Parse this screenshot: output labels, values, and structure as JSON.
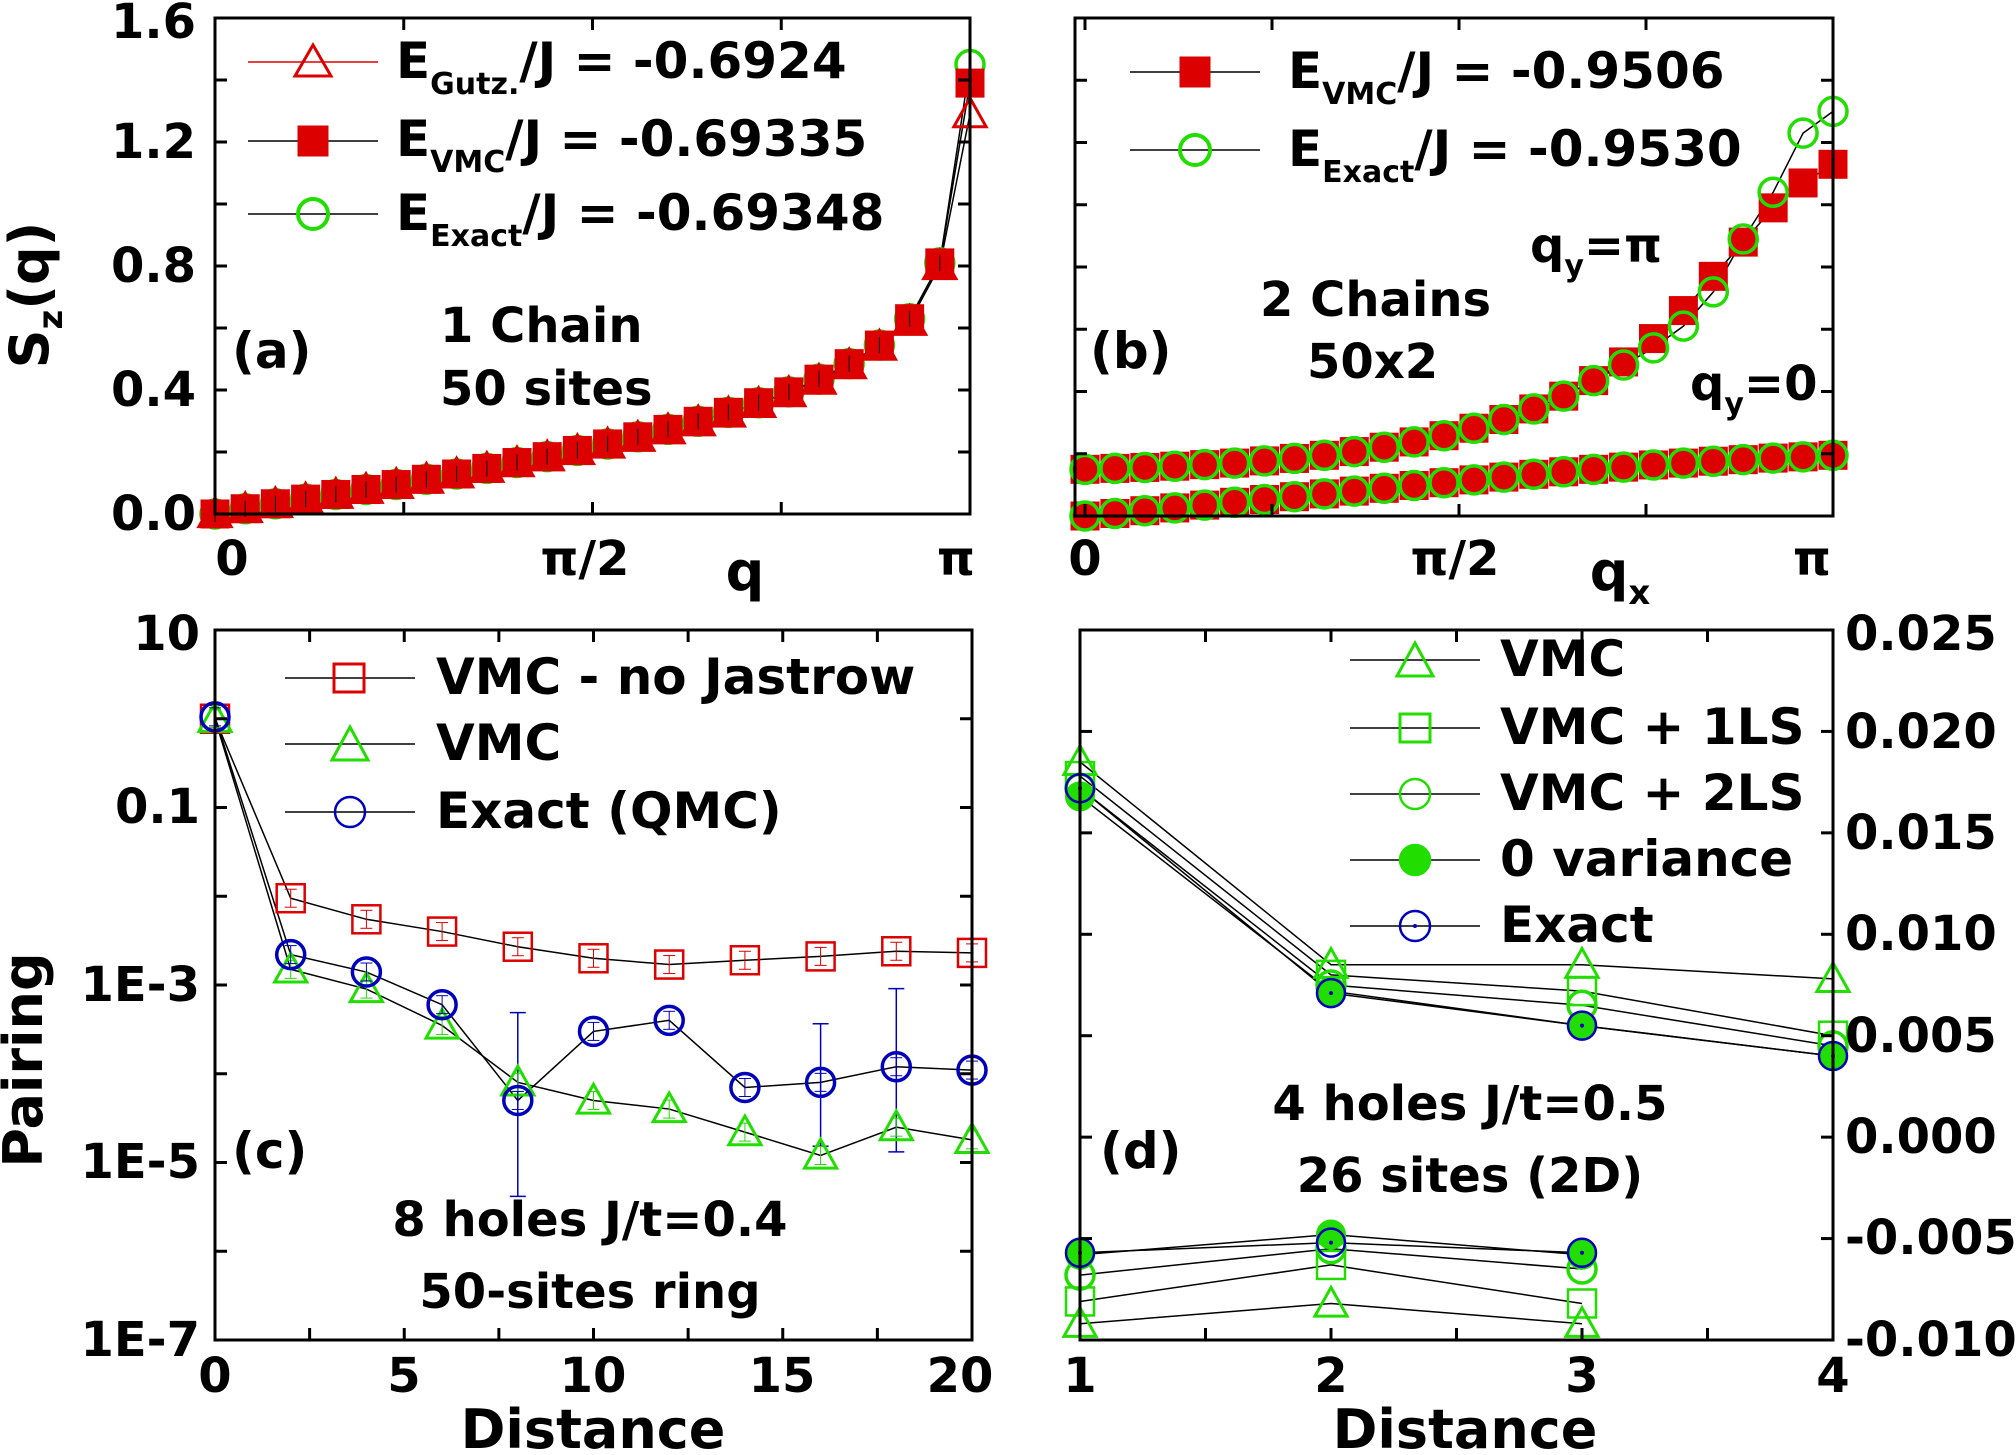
{
  "colors": {
    "red": "#dd0000",
    "green": "#22dd00",
    "blue": "#0000bb",
    "black": "#000000"
  },
  "chart_data": [
    {
      "id": "a",
      "type": "scatter",
      "panel_label": "(a)",
      "ylabel": "S_z(q)",
      "xlabel": "q",
      "xlim": [
        0,
        3.14159
      ],
      "ylim": [
        0,
        1.6
      ],
      "yticks": [
        "0.0",
        "0.4",
        "0.8",
        "1.2",
        "1.6"
      ],
      "xticks": [
        "0",
        "π/2",
        "π"
      ],
      "annotations": [
        "1 Chain",
        "50 sites"
      ],
      "legend": [
        "E_Gutz./J = -0.6924",
        "E_VMC/J  = -0.69335",
        "E_Exact/J = -0.69348"
      ],
      "series": [
        {
          "name": "E_Gutz./J = -0.6924",
          "marker": "open-triangle",
          "color": "red",
          "y": [
            0.0,
            0.016,
            0.032,
            0.047,
            0.062,
            0.078,
            0.094,
            0.111,
            0.128,
            0.146,
            0.164,
            0.183,
            0.203,
            0.224,
            0.246,
            0.27,
            0.296,
            0.324,
            0.355,
            0.39,
            0.43,
            0.48,
            0.54,
            0.62,
            0.8,
            1.29
          ]
        },
        {
          "name": "E_VMC/J  = -0.69335",
          "marker": "filled-square",
          "color": "red",
          "y": [
            0.0,
            0.017,
            0.033,
            0.048,
            0.063,
            0.079,
            0.095,
            0.112,
            0.129,
            0.147,
            0.166,
            0.185,
            0.205,
            0.226,
            0.249,
            0.273,
            0.299,
            0.328,
            0.359,
            0.394,
            0.435,
            0.485,
            0.545,
            0.63,
            0.81,
            1.39
          ]
        },
        {
          "name": "E_Exact/J = -0.69348",
          "marker": "open-circle",
          "color": "green",
          "y": [
            0.0,
            0.017,
            0.033,
            0.048,
            0.063,
            0.079,
            0.095,
            0.112,
            0.129,
            0.147,
            0.166,
            0.185,
            0.205,
            0.226,
            0.249,
            0.273,
            0.299,
            0.328,
            0.359,
            0.394,
            0.435,
            0.485,
            0.545,
            0.63,
            0.81,
            1.45
          ]
        }
      ]
    },
    {
      "id": "b",
      "type": "scatter",
      "panel_label": "(b)",
      "xlabel": "q_x",
      "xlim": [
        0,
        3.14159
      ],
      "ylim": [
        0,
        1.6
      ],
      "xticks": [
        "0",
        "π/2",
        "π"
      ],
      "annotations": [
        "2 Chains",
        "50x2",
        "q_y=π",
        "q_y=0"
      ],
      "legend": [
        "E_VMC/J = -0.9506",
        "E_Exact/J = -0.9530"
      ],
      "series": [
        {
          "name": "E_VMC/J = -0.9506 (q_y=π)",
          "marker": "filled-square",
          "color": "red",
          "y": [
            0.15,
            0.153,
            0.156,
            0.16,
            0.165,
            0.17,
            0.177,
            0.185,
            0.195,
            0.207,
            0.221,
            0.238,
            0.258,
            0.282,
            0.31,
            0.344,
            0.385,
            0.435,
            0.495,
            0.57,
            0.66,
            0.77,
            0.88,
            0.99,
            1.07,
            1.13
          ]
        },
        {
          "name": "E_Exact/J = -0.9530 (q_y=π)",
          "marker": "open-circle",
          "color": "green",
          "y": [
            0.15,
            0.153,
            0.156,
            0.16,
            0.165,
            0.17,
            0.177,
            0.185,
            0.195,
            0.207,
            0.221,
            0.238,
            0.258,
            0.282,
            0.31,
            0.344,
            0.385,
            0.435,
            0.485,
            0.54,
            0.61,
            0.72,
            0.89,
            1.04,
            1.23,
            1.3
          ]
        },
        {
          "name": "E_VMC/J = -0.9506 (q_y=0)",
          "marker": "filled-square",
          "color": "red",
          "y": [
            0.0,
            0.008,
            0.017,
            0.026,
            0.035,
            0.044,
            0.053,
            0.062,
            0.071,
            0.08,
            0.089,
            0.098,
            0.107,
            0.116,
            0.125,
            0.134,
            0.142,
            0.15,
            0.157,
            0.164,
            0.17,
            0.176,
            0.181,
            0.186,
            0.19,
            0.195
          ]
        },
        {
          "name": "E_Exact/J = -0.9530 (q_y=0)",
          "marker": "open-circle",
          "color": "green",
          "y": [
            0.0,
            0.008,
            0.017,
            0.026,
            0.035,
            0.044,
            0.053,
            0.062,
            0.071,
            0.08,
            0.089,
            0.098,
            0.107,
            0.116,
            0.125,
            0.134,
            0.142,
            0.15,
            0.157,
            0.164,
            0.17,
            0.176,
            0.181,
            0.186,
            0.19,
            0.195
          ]
        }
      ]
    },
    {
      "id": "c",
      "type": "scatter",
      "panel_label": "(c)",
      "ylabel": "Pairing",
      "xlabel": "Distance",
      "xlim": [
        0,
        20
      ],
      "ylim_log10": [
        -7,
        1
      ],
      "yscale": "log",
      "xticks": [
        "0",
        "5",
        "10",
        "15",
        "20"
      ],
      "yticks": [
        "1E-7",
        "1E-5",
        "1E-3",
        "0.1",
        "10"
      ],
      "annotations": [
        "8 holes J/t=0.4",
        "50-sites ring"
      ],
      "legend": [
        "VMC - no Jastrow",
        "VMC",
        "Exact (QMC)"
      ],
      "series": [
        {
          "name": "VMC - no Jastrow",
          "marker": "open-square",
          "color": "red",
          "x": [
            0,
            2,
            4,
            6,
            8,
            10,
            12,
            14,
            16,
            18,
            20
          ],
          "y": [
            1.0,
            0.0095,
            0.0055,
            0.004,
            0.0027,
            0.002,
            0.0017,
            0.0019,
            0.0021,
            0.0024,
            0.0023
          ]
        },
        {
          "name": "VMC",
          "marker": "open-triangle",
          "color": "green",
          "x": [
            0,
            2,
            4,
            6,
            8,
            10,
            12,
            14,
            16,
            18,
            20
          ],
          "y": [
            1.0,
            0.0015,
            0.0009,
            0.00035,
            8e-05,
            5e-05,
            4e-05,
            2.2e-05,
            1.2e-05,
            2.5e-05,
            1.8e-05
          ]
        },
        {
          "name": "Exact (QMC)",
          "marker": "open-circle",
          "color": "blue",
          "x": [
            0,
            2,
            4,
            6,
            8,
            10,
            12,
            14,
            16,
            18,
            20
          ],
          "y": [
            1.05,
            0.0022,
            0.0014,
            0.0006,
            5e-05,
            0.0003,
            0.0004,
            7e-05,
            8e-05,
            0.00012,
            0.00011
          ],
          "err": [
            0,
            0,
            0,
            0,
            0.9,
            0,
            0,
            0,
            0.6,
            0.8,
            0
          ]
        }
      ]
    },
    {
      "id": "d",
      "type": "scatter",
      "panel_label": "(d)",
      "xlabel": "Distance",
      "xlim": [
        1,
        4
      ],
      "ylim": [
        -0.01,
        0.025
      ],
      "xticks": [
        "1",
        "2",
        "3",
        "4"
      ],
      "yticks_right": [
        "-0.010",
        "-0.005",
        "0.000",
        "0.005",
        "0.010",
        "0.015",
        "0.020",
        "0.025"
      ],
      "annotations": [
        "4 holes J/t=0.5",
        "26 sites (2D)"
      ],
      "legend": [
        "VMC",
        "VMC + 1LS",
        "VMC + 2LS",
        "0 variance",
        "Exact"
      ],
      "series": [
        {
          "name": "VMC",
          "marker": "open-triangle",
          "color": "green",
          "x": [
            1,
            2,
            3,
            4
          ],
          "y": [
            0.0185,
            0.0085,
            0.0085,
            0.0078
          ],
          "neg_x": [
            1,
            2,
            3
          ],
          "neg_y": [
            -0.0092,
            -0.0082,
            -0.0092
          ]
        },
        {
          "name": "VMC + 1LS",
          "marker": "open-square",
          "color": "green",
          "x": [
            1,
            2,
            3,
            4
          ],
          "y": [
            0.0178,
            0.008,
            0.0072,
            0.005
          ],
          "neg_x": [
            1,
            2,
            3
          ],
          "neg_y": [
            -0.0081,
            -0.0063,
            -0.0082
          ]
        },
        {
          "name": "VMC + 2LS",
          "marker": "open-circle",
          "color": "green",
          "x": [
            1,
            2,
            3,
            4
          ],
          "y": [
            0.0172,
            0.0075,
            0.0065,
            0.0045
          ],
          "neg_x": [
            1,
            2,
            3
          ],
          "neg_y": [
            -0.0068,
            -0.0055,
            -0.0065
          ]
        },
        {
          "name": "0 variance",
          "marker": "filled-circle",
          "color": "green",
          "x": [
            1,
            2,
            3,
            4
          ],
          "y": [
            0.0168,
            0.0072,
            0.0055,
            0.004
          ],
          "neg_x": [
            1,
            2,
            3
          ],
          "neg_y": [
            -0.0058,
            -0.0048,
            -0.0058
          ]
        },
        {
          "name": "Exact",
          "marker": "open-circle-dot",
          "color": "blue",
          "x": [
            1,
            2,
            3,
            4
          ],
          "y": [
            0.0172,
            0.0071,
            0.0055,
            0.004
          ],
          "neg_x": [
            1,
            2,
            3
          ],
          "neg_y": [
            -0.0057,
            -0.0052,
            -0.0057
          ]
        }
      ]
    }
  ]
}
